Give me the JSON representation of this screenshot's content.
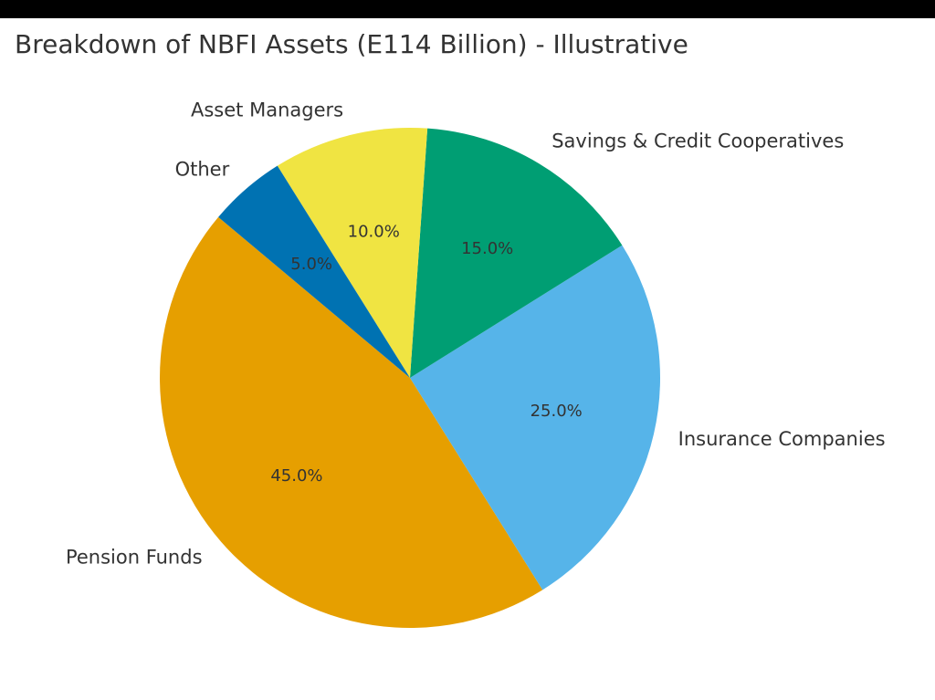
{
  "chart_data": {
    "type": "pie",
    "title": "Breakdown of NBFI Assets (E114 Billion) - Illustrative",
    "categories": [
      "Pension Funds",
      "Insurance Companies",
      "Savings & Credit Cooperatives",
      "Asset Managers",
      "Other"
    ],
    "values": [
      45,
      25,
      15,
      10,
      5
    ],
    "value_labels": [
      "45.0%",
      "25.0%",
      "15.0%",
      "10.0%",
      "5.0%"
    ],
    "colors": [
      "#e69f00",
      "#56b4e9",
      "#009e73",
      "#f0e442",
      "#0072b2"
    ],
    "start_angle": 140
  }
}
